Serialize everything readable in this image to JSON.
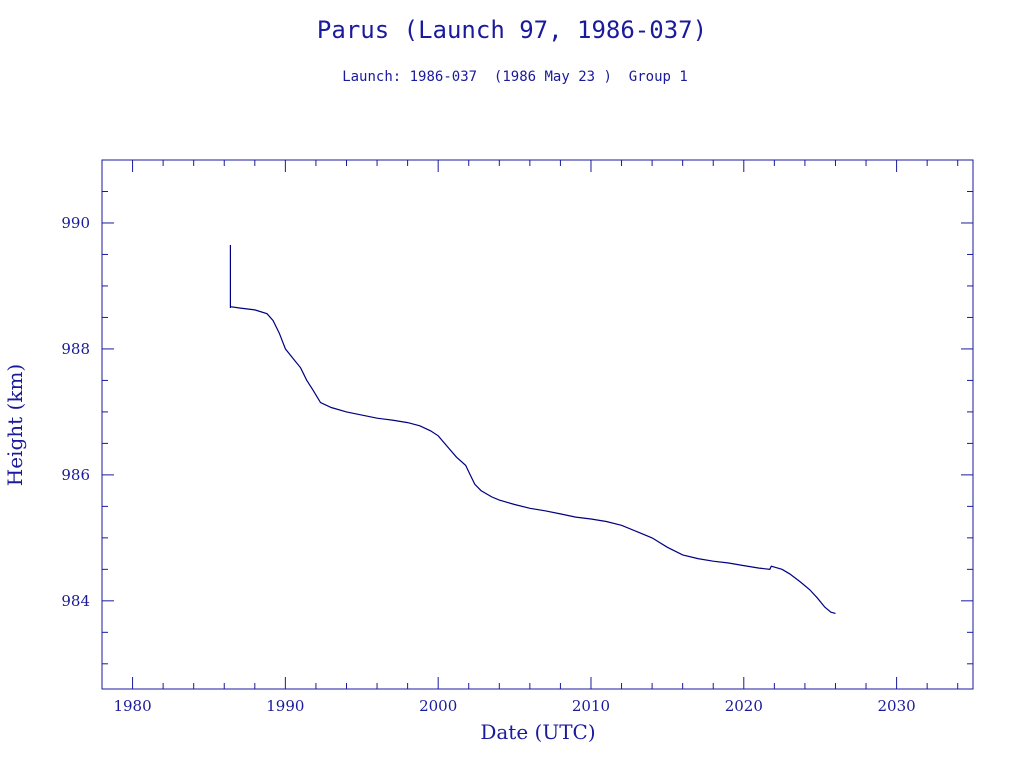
{
  "chart_data": {
    "type": "line",
    "title": "Parus (Launch 97, 1986-037)",
    "subtitle": "Launch: 1986-037  (1986 May 23 )  Group 1",
    "xlabel": "Date (UTC)",
    "ylabel": "Height (km)",
    "xlim": [
      1978,
      2035
    ],
    "ylim": [
      982.6,
      991.0
    ],
    "xticks": [
      1980,
      1990,
      2000,
      2010,
      2020,
      2030
    ],
    "yticks": [
      984,
      986,
      988,
      990
    ],
    "grid": false,
    "color": "#000080",
    "series": [
      {
        "x": [
          1986.4,
          1986.4,
          1986.4,
          1987.0,
          1988.0,
          1988.8,
          1989.2,
          1989.6,
          1990.0,
          1990.5,
          1991.0,
          1991.4,
          1991.8,
          1992.3,
          1993.0,
          1994.0,
          1995.0,
          1996.0,
          1997.0,
          1998.0,
          1998.8,
          1999.5,
          2000.0,
          2000.6,
          2001.2,
          2001.8,
          2002.0,
          2002.4,
          2002.8,
          2003.5,
          2004.0,
          2005.0,
          2006.0,
          2007.0,
          2008.0,
          2009.0,
          2010.0,
          2011.0,
          2012.0,
          2013.0,
          2014.0,
          2015.0,
          2016.0,
          2017.0,
          2018.0,
          2019.0,
          2020.0,
          2021.0,
          2021.7,
          2021.8,
          2022.5,
          2023.0,
          2023.7,
          2024.3,
          2024.8,
          2025.3,
          2025.7,
          2026.0
        ],
        "y": [
          989.65,
          988.65,
          988.67,
          988.65,
          988.62,
          988.56,
          988.45,
          988.25,
          988.0,
          987.85,
          987.7,
          987.5,
          987.35,
          987.15,
          987.07,
          987.0,
          986.95,
          986.9,
          986.87,
          986.83,
          986.78,
          986.7,
          986.62,
          986.45,
          986.28,
          986.15,
          986.05,
          985.85,
          985.75,
          985.65,
          985.6,
          985.53,
          985.47,
          985.43,
          985.38,
          985.33,
          985.3,
          985.26,
          985.2,
          985.1,
          985.0,
          984.85,
          984.73,
          984.67,
          984.63,
          984.6,
          984.56,
          984.52,
          984.5,
          984.55,
          984.5,
          984.43,
          984.3,
          984.18,
          984.05,
          983.9,
          983.82,
          983.8
        ]
      }
    ]
  }
}
